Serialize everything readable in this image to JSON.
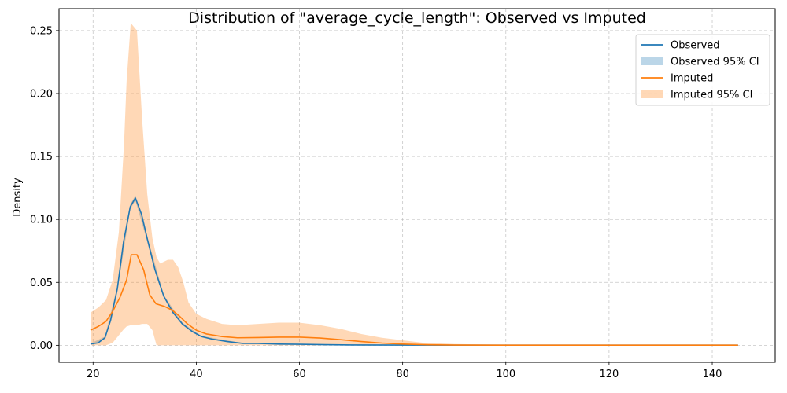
{
  "chart_data": {
    "type": "line",
    "title": "Distribution of \"average_cycle_length\": Observed vs Imputed",
    "xlabel": "",
    "ylabel": "Density",
    "xlim": [
      13.4,
      152.2
    ],
    "ylim": [
      -0.0135,
      0.2674
    ],
    "x_ticks": [
      20,
      40,
      60,
      80,
      100,
      120,
      140
    ],
    "x_tick_labels": [
      "20",
      "40",
      "60",
      "80",
      "100",
      "120",
      "140"
    ],
    "y_ticks": [
      0.0,
      0.05,
      0.1,
      0.15,
      0.2,
      0.25
    ],
    "y_tick_labels": [
      "0.00",
      "0.05",
      "0.10",
      "0.15",
      "0.20",
      "0.25"
    ],
    "grid": true,
    "legend_position": "top-right",
    "colors": {
      "observed": "#1f77b4",
      "imputed": "#ff7f0e",
      "observed_ci_fill": "#1f77b4",
      "imputed_ci_fill": "#ff7f0e"
    },
    "legend": [
      {
        "label": "Observed",
        "kind": "line",
        "color": "#1f77b4"
      },
      {
        "label": "Observed 95% CI",
        "kind": "fill",
        "color": "#1f77b4"
      },
      {
        "label": "Imputed",
        "kind": "line",
        "color": "#ff7f0e"
      },
      {
        "label": "Imputed 95% CI",
        "kind": "fill",
        "color": "#ff7f0e"
      }
    ],
    "series": [
      {
        "name": "Observed",
        "color": "#1f77b4",
        "x": [
          19.5,
          21.0,
          22.3,
          23.4,
          24.7,
          25.9,
          27.2,
          28.2,
          29.4,
          30.6,
          32.0,
          33.7,
          35.5,
          37.3,
          39.2,
          41.0,
          43.0,
          46.0,
          49.0,
          52.0,
          56.0,
          60.0,
          65.0,
          70.0,
          80.0,
          90.0,
          100.0,
          110.0,
          120.0,
          130.0,
          140.0,
          145.0
        ],
        "y": [
          0.001,
          0.002,
          0.006,
          0.02,
          0.045,
          0.082,
          0.11,
          0.117,
          0.104,
          0.083,
          0.06,
          0.039,
          0.026,
          0.017,
          0.011,
          0.007,
          0.005,
          0.003,
          0.0015,
          0.0015,
          0.001,
          0.0008,
          0.0005,
          0.0003,
          0.0002,
          0.0001,
          0.0001,
          0.0001,
          0.0001,
          0.0001,
          0.0001,
          0.0001
        ]
      },
      {
        "name": "Imputed",
        "color": "#ff7f0e",
        "x": [
          19.5,
          21.0,
          22.5,
          23.8,
          25.2,
          26.5,
          27.4,
          28.5,
          29.8,
          31.0,
          32.2,
          33.8,
          35.3,
          36.8,
          38.3,
          40.0,
          42.0,
          45.0,
          48.0,
          52.0,
          56.0,
          60.0,
          64.0,
          68.0,
          72.0,
          76.0,
          80.0,
          85.0,
          90.0,
          100.0,
          110.0,
          120.0,
          130.0,
          140.0,
          145.0
        ],
        "y": [
          0.012,
          0.015,
          0.019,
          0.027,
          0.038,
          0.052,
          0.072,
          0.072,
          0.06,
          0.04,
          0.033,
          0.031,
          0.028,
          0.023,
          0.017,
          0.012,
          0.009,
          0.007,
          0.006,
          0.0062,
          0.0065,
          0.0065,
          0.0058,
          0.0045,
          0.003,
          0.0018,
          0.001,
          0.0004,
          0.0002,
          0.0001,
          0.0001,
          0.0001,
          0.0001,
          0.0001,
          0.0001
        ]
      }
    ],
    "bands": [
      {
        "name": "Observed 95% CI",
        "color": "#1f77b4",
        "x": [
          19.5,
          22.3,
          24.7,
          27.2,
          28.2,
          30.6,
          33.7,
          37.3,
          41.0,
          49.0,
          60.0,
          80.0,
          100.0,
          145.0
        ],
        "lower": [
          0.0005,
          0.005,
          0.043,
          0.108,
          0.115,
          0.081,
          0.038,
          0.016,
          0.0065,
          0.0012,
          0.0007,
          0.0001,
          0.0001,
          0.0001
        ],
        "upper": [
          0.0015,
          0.007,
          0.047,
          0.112,
          0.119,
          0.085,
          0.04,
          0.018,
          0.0075,
          0.0018,
          0.0009,
          0.0003,
          0.0001,
          0.0001
        ]
      },
      {
        "name": "Imputed 95% CI",
        "color": "#ff7f0e",
        "x": [
          19.5,
          21.0,
          22.5,
          23.8,
          25.0,
          26.0,
          26.5,
          27.3,
          28.5,
          29.5,
          30.5,
          31.5,
          32.3,
          33.0,
          34.5,
          35.5,
          36.5,
          37.5,
          38.5,
          40.0,
          42.0,
          45.0,
          48.0,
          52.0,
          56.0,
          60.0,
          64.0,
          68.0,
          72.0,
          76.0,
          80.0,
          84.0,
          90.0,
          100.0,
          110.0,
          120.0,
          130.0,
          140.0,
          145.0
        ],
        "lower": [
          0.0,
          0.0,
          0.0,
          0.002,
          0.008,
          0.013,
          0.015,
          0.016,
          0.016,
          0.017,
          0.017,
          0.012,
          0.0,
          0.0,
          0.0,
          0.0,
          0.0,
          0.0,
          0.0,
          0.0,
          0.0,
          0.0,
          0.0,
          0.0,
          0.0,
          0.0,
          0.0,
          0.0,
          0.0,
          0.0,
          0.0,
          0.0,
          0.0,
          0.0,
          0.0,
          0.0,
          0.0,
          0.0,
          0.0
        ],
        "upper": [
          0.026,
          0.03,
          0.036,
          0.052,
          0.09,
          0.16,
          0.21,
          0.256,
          0.25,
          0.18,
          0.12,
          0.085,
          0.07,
          0.065,
          0.068,
          0.068,
          0.062,
          0.05,
          0.034,
          0.025,
          0.021,
          0.017,
          0.016,
          0.017,
          0.018,
          0.018,
          0.016,
          0.013,
          0.009,
          0.006,
          0.004,
          0.002,
          0.001,
          0.0004,
          0.0002,
          0.0002,
          0.0002,
          0.0002,
          0.0002
        ]
      }
    ]
  }
}
